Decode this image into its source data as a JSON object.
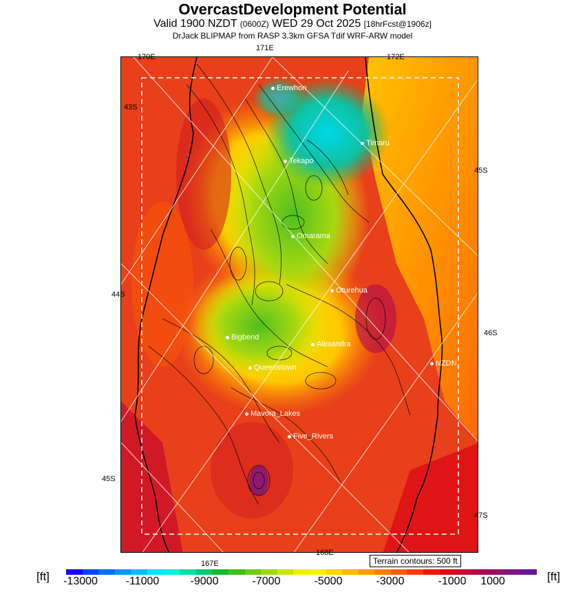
{
  "header": {
    "title": "OvercastDevelopment Potential",
    "subtitle_main": "Valid 1900 NZDT",
    "subtitle_utc": "(0600Z)",
    "subtitle_date": "WED 29 Oct 2025",
    "subtitle_fcst": "[18hrFcst@1906z]",
    "model_line": "DrJack BLIPMAP from RASP 3.3km GFSA Tdif WRF-ARW model"
  },
  "grid_labels": {
    "lon_170e": "170E",
    "lon_171e": "171E",
    "lon_172e": "172E",
    "lon_167e": "167E",
    "lon_168e": "168E",
    "lat_43s": "43S",
    "lat_44s": "44S",
    "lat_45s_left": "45S",
    "lat_45s_right": "45S",
    "lat_46s": "46S",
    "lat_47s": "47S"
  },
  "locations": [
    "Erewhon",
    "Timaru",
    "Tekapo",
    "Omarama",
    "Oturehua",
    "Alexandra",
    "Bigbend",
    "Queenstown",
    "NZDN",
    "Mavora_Lakes",
    "Five_Rivers"
  ],
  "legend": {
    "terrain_note": "Terrain contours: 500 ft",
    "unit_left": "[ft]",
    "unit_right": "[ft]",
    "ticks": [
      "-13000",
      "-11000",
      "-9000",
      "-7000",
      "-5000",
      "-3000",
      "-1000",
      "1000"
    ],
    "colors": [
      "#1a00ff",
      "#0044ff",
      "#0070ff",
      "#0098ff",
      "#00c0ff",
      "#00e6ff",
      "#00f2dc",
      "#00e0a6",
      "#00cc70",
      "#12bb2c",
      "#3cc018",
      "#6ccc12",
      "#9cd80c",
      "#c8e408",
      "#eef004",
      "#fff000",
      "#ffd800",
      "#ffba00",
      "#ff9c00",
      "#ff7e00",
      "#ff5c00",
      "#ff3a00",
      "#f01800",
      "#dc0a14",
      "#c8082c",
      "#b00a48",
      "#961066",
      "#7c1480",
      "#661896"
    ]
  }
}
